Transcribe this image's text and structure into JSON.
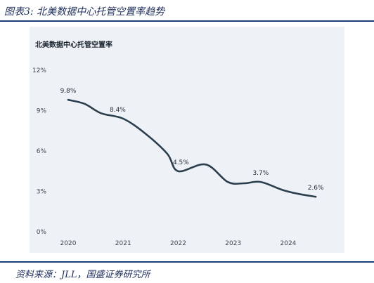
{
  "figure": {
    "title": "图表3:  北美数据中心托管空置率趋势",
    "source": "资料来源：JLL，国盛证券研究所"
  },
  "colors": {
    "accent": "#1c3f7a",
    "line": "#2b3e4e",
    "panel_bg": "#eef2f6"
  },
  "chart_data": {
    "type": "line",
    "title": "北美数据中心托管空置率",
    "xlabel": "",
    "ylabel": "",
    "x_ticks": [
      "2020",
      "2021",
      "2022",
      "2023",
      "2024"
    ],
    "y_ticks": [
      "0%",
      "3%",
      "6%",
      "9%",
      "12%"
    ],
    "ylim": [
      0,
      12
    ],
    "xlim": [
      2020,
      2024.6
    ],
    "grid": false,
    "series": [
      {
        "values": [
          {
            "x": 2020.0,
            "y": 9.8
          },
          {
            "x": 2020.3,
            "y": 9.5
          },
          {
            "x": 2020.6,
            "y": 8.8
          },
          {
            "x": 2021.0,
            "y": 8.4
          },
          {
            "x": 2021.4,
            "y": 7.3
          },
          {
            "x": 2021.8,
            "y": 5.8
          },
          {
            "x": 2022.0,
            "y": 4.5
          },
          {
            "x": 2022.5,
            "y": 5.0
          },
          {
            "x": 2022.9,
            "y": 3.7
          },
          {
            "x": 2023.2,
            "y": 3.6
          },
          {
            "x": 2023.5,
            "y": 3.7
          },
          {
            "x": 2023.9,
            "y": 3.1
          },
          {
            "x": 2024.2,
            "y": 2.8
          },
          {
            "x": 2024.5,
            "y": 2.6
          }
        ]
      }
    ],
    "data_labels": [
      {
        "x": 2020.0,
        "y": 9.8,
        "text": "9.8%"
      },
      {
        "x": 2020.9,
        "y": 8.4,
        "text": "8.4%"
      },
      {
        "x": 2022.05,
        "y": 4.5,
        "text": "4.5%"
      },
      {
        "x": 2023.5,
        "y": 3.7,
        "text": "3.7%"
      },
      {
        "x": 2024.5,
        "y": 2.6,
        "text": "2.6%"
      }
    ]
  }
}
